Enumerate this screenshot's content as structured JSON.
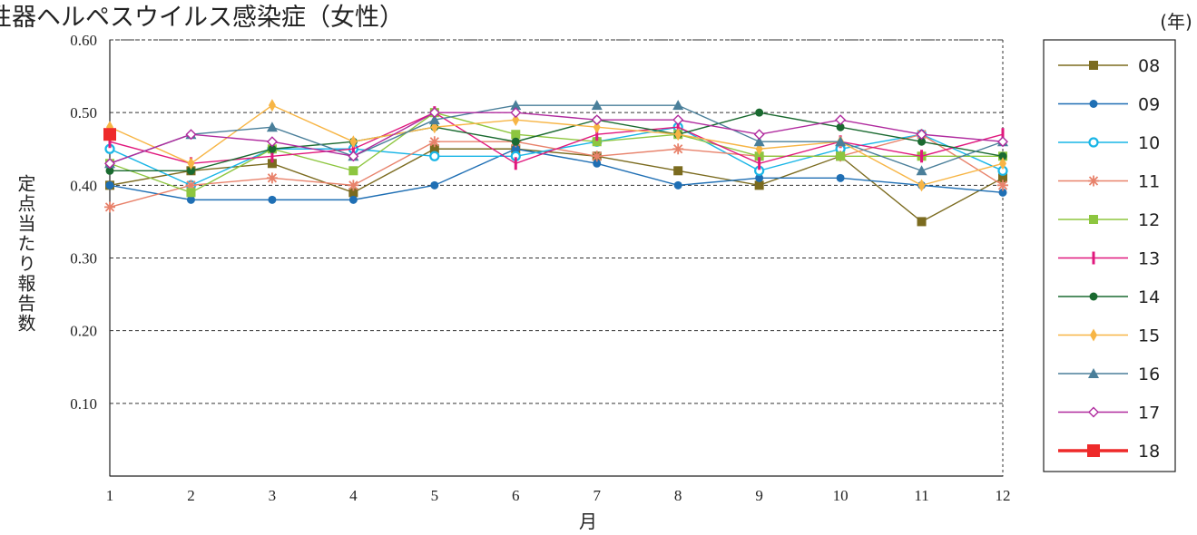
{
  "chart_data": {
    "type": "line",
    "title": "性器ヘルペスウイルス感染症（女性）",
    "x_label": "月",
    "y_label": "定点当たり報告数",
    "legend_title": "(年)",
    "x": [
      1,
      2,
      3,
      4,
      5,
      6,
      7,
      8,
      9,
      10,
      11,
      12
    ],
    "xlim": [
      1,
      12
    ],
    "xticks": [
      1,
      2,
      3,
      4,
      5,
      6,
      7,
      8,
      9,
      10,
      11,
      12
    ],
    "ylim": [
      0,
      0.6
    ],
    "yticks": [
      {
        "value": 0.1,
        "label": "0.10"
      },
      {
        "value": 0.2,
        "label": "0.20"
      },
      {
        "value": 0.3,
        "label": "0.30"
      },
      {
        "value": 0.4,
        "label": "0.40"
      },
      {
        "value": 0.5,
        "label": "0.50"
      },
      {
        "value": 0.6,
        "label": "0.60"
      }
    ],
    "grid": true,
    "legend": "right",
    "series": [
      {
        "name": "08",
        "color": "#7b6b1f",
        "marker": "square",
        "values": [
          0.4,
          0.42,
          0.43,
          0.39,
          0.45,
          0.45,
          0.44,
          0.42,
          0.4,
          0.44,
          0.35,
          0.41
        ]
      },
      {
        "name": "09",
        "color": "#1f6fb4",
        "marker": "dot",
        "values": [
          0.4,
          0.38,
          0.38,
          0.38,
          0.4,
          0.45,
          0.43,
          0.4,
          0.41,
          0.41,
          0.4,
          0.39
        ]
      },
      {
        "name": "10",
        "color": "#19b5e6",
        "marker": "ring",
        "values": [
          0.45,
          0.4,
          0.45,
          0.45,
          0.44,
          0.44,
          0.46,
          0.48,
          0.42,
          0.45,
          0.47,
          0.42
        ]
      },
      {
        "name": "11",
        "color": "#e8826b",
        "marker": "asterisk",
        "values": [
          0.37,
          0.4,
          0.41,
          0.4,
          0.46,
          0.46,
          0.44,
          0.45,
          0.44,
          0.44,
          0.47,
          0.4
        ]
      },
      {
        "name": "12",
        "color": "#8dc63f",
        "marker": "square",
        "values": [
          0.43,
          0.39,
          0.45,
          0.42,
          0.5,
          0.47,
          0.46,
          0.47,
          0.44,
          0.44,
          0.44,
          0.44
        ]
      },
      {
        "name": "13",
        "color": "#e0187d",
        "marker": "bar",
        "values": [
          0.46,
          0.43,
          0.44,
          0.45,
          0.5,
          0.43,
          0.47,
          0.48,
          0.43,
          0.46,
          0.44,
          0.47
        ]
      },
      {
        "name": "14",
        "color": "#1a6a30",
        "marker": "dot",
        "values": [
          0.42,
          0.42,
          0.45,
          0.46,
          0.48,
          0.46,
          0.49,
          0.47,
          0.5,
          0.48,
          0.46,
          0.44
        ]
      },
      {
        "name": "15",
        "color": "#f7b545",
        "marker": "diamond",
        "values": [
          0.48,
          0.43,
          0.51,
          0.46,
          0.48,
          0.49,
          0.48,
          0.47,
          0.45,
          0.46,
          0.4,
          0.43
        ]
      },
      {
        "name": "16",
        "color": "#4a7f9a",
        "marker": "triangle",
        "values": [
          0.43,
          0.47,
          0.48,
          0.44,
          0.49,
          0.51,
          0.51,
          0.51,
          0.46,
          0.46,
          0.42,
          0.46
        ]
      },
      {
        "name": "17",
        "color": "#b02a9e",
        "marker": "open-diamond",
        "values": [
          0.43,
          0.47,
          0.46,
          0.44,
          0.5,
          0.5,
          0.49,
          0.49,
          0.47,
          0.49,
          0.47,
          0.46
        ]
      },
      {
        "name": "18",
        "color": "#ee2a2a",
        "marker": "big-square",
        "values": [
          0.47,
          null,
          null,
          null,
          null,
          null,
          null,
          null,
          null,
          null,
          null,
          null
        ]
      }
    ]
  }
}
